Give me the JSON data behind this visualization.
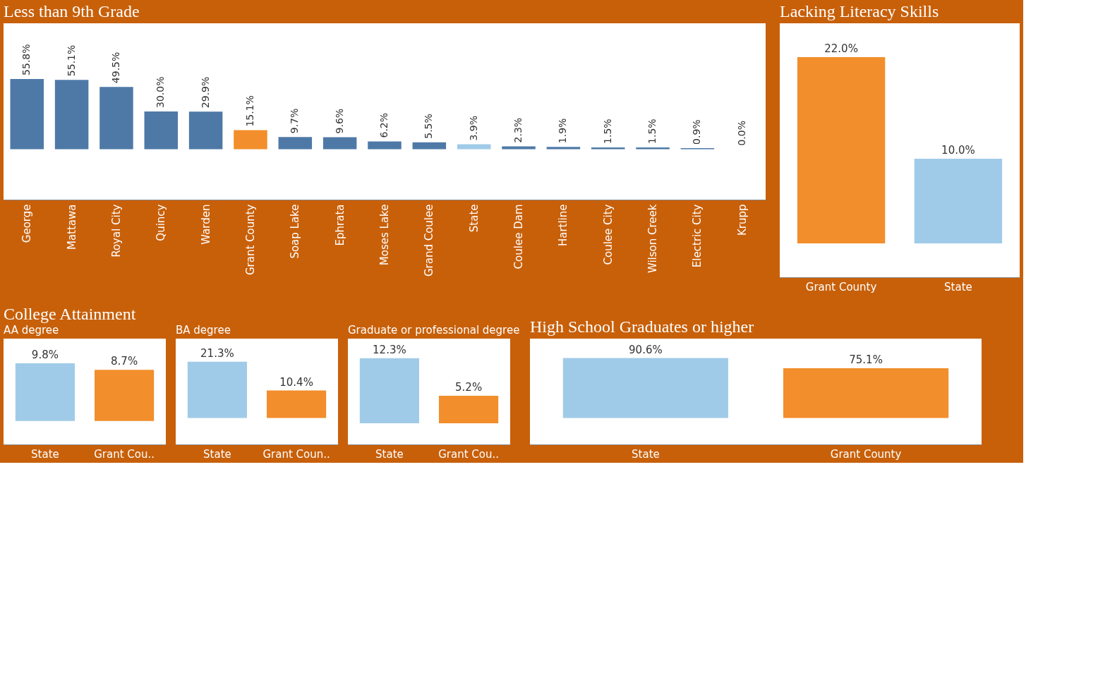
{
  "chart_data": [
    {
      "type": "bar",
      "title": "Less than 9th Grade",
      "categories": [
        "George",
        "Mattawa",
        "Royal City",
        "Quincy",
        "Warden",
        "Grant County",
        "Soap Lake",
        "Ephrata",
        "Moses Lake",
        "Grand Coulee",
        "State",
        "Coulee Dam",
        "Hartline",
        "Coulee City",
        "Wilson Creek",
        "Electric City",
        "Krupp"
      ],
      "values": [
        55.8,
        55.1,
        49.5,
        30.0,
        29.9,
        15.1,
        9.7,
        9.6,
        6.2,
        5.5,
        3.9,
        2.3,
        1.9,
        1.5,
        1.5,
        0.9,
        0.0
      ],
      "value_labels": [
        "55.8%",
        "55.1%",
        "49.5%",
        "30.0%",
        "29.9%",
        "15.1%",
        "9.7%",
        "9.6%",
        "6.2%",
        "5.5%",
        "3.9%",
        "2.3%",
        "1.9%",
        "1.5%",
        "1.5%",
        "0.9%",
        "0.0%"
      ],
      "colors": [
        "#4e79a7",
        "#4e79a7",
        "#4e79a7",
        "#4e79a7",
        "#4e79a7",
        "#f28e2b",
        "#4e79a7",
        "#4e79a7",
        "#4e79a7",
        "#4e79a7",
        "#a0cbe8",
        "#4e79a7",
        "#4e79a7",
        "#4e79a7",
        "#4e79a7",
        "#4e79a7",
        "#4e79a7"
      ]
    },
    {
      "type": "bar",
      "title": "Lacking Literacy Skills",
      "categories": [
        "Grant County",
        "State"
      ],
      "values": [
        22.0,
        10.0
      ],
      "value_labels": [
        "22.0%",
        "10.0%"
      ],
      "colors": [
        "#f28e2b",
        "#a0cbe8"
      ]
    },
    {
      "type": "bar",
      "title": "College Attainment",
      "subtitle": "AA degree",
      "categories": [
        "State",
        "Grant Cou.."
      ],
      "values": [
        9.8,
        8.7
      ],
      "value_labels": [
        "9.8%",
        "8.7%"
      ],
      "colors": [
        "#a0cbe8",
        "#f28e2b"
      ]
    },
    {
      "type": "bar",
      "subtitle": "BA degree",
      "categories": [
        "State",
        "Grant Coun.."
      ],
      "values": [
        21.3,
        10.4
      ],
      "value_labels": [
        "21.3%",
        "10.4%"
      ],
      "colors": [
        "#a0cbe8",
        "#f28e2b"
      ]
    },
    {
      "type": "bar",
      "subtitle": "Graduate or professional degree",
      "categories": [
        "State",
        "Grant Cou.."
      ],
      "values": [
        12.3,
        5.2
      ],
      "value_labels": [
        "12.3%",
        "5.2%"
      ],
      "colors": [
        "#a0cbe8",
        "#f28e2b"
      ]
    },
    {
      "type": "bar",
      "title": "High School Graduates or higher",
      "categories": [
        "State",
        "Grant County"
      ],
      "values": [
        90.6,
        75.1
      ],
      "value_labels": [
        "90.6%",
        "75.1%"
      ],
      "colors": [
        "#a0cbe8",
        "#f28e2b"
      ]
    }
  ]
}
